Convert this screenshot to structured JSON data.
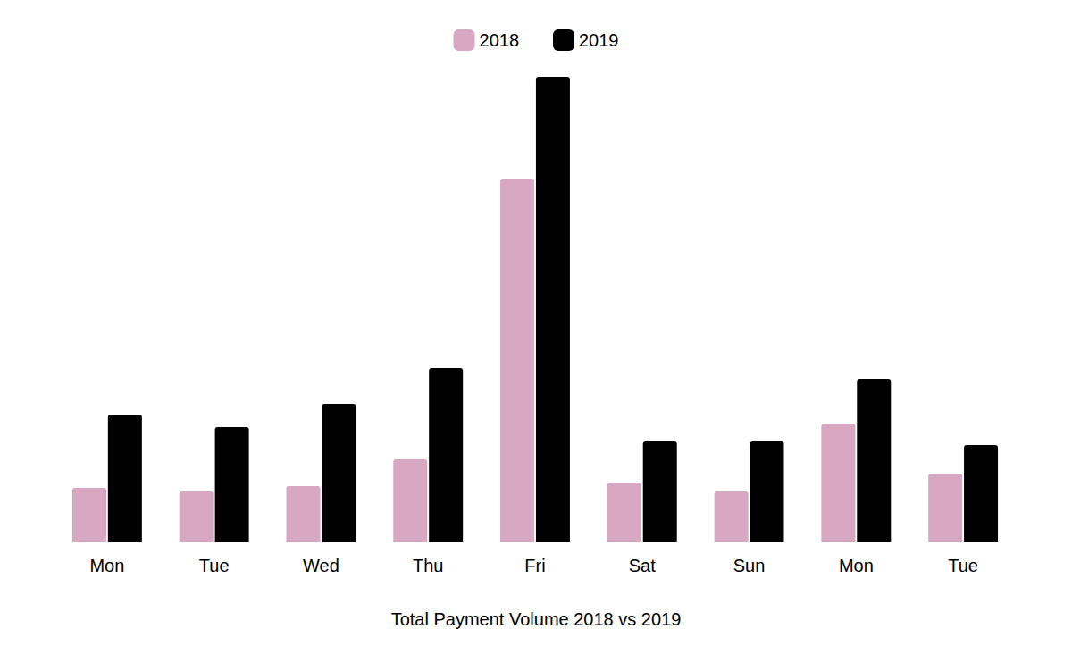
{
  "chart_data": {
    "type": "bar",
    "title": "Total Payment Volume 2018 vs 2019",
    "categories": [
      "Mon",
      "Tue",
      "Wed",
      "Thu",
      "Fri",
      "Sat",
      "Sun",
      "Mon",
      "Tue"
    ],
    "series": [
      {
        "name": "2018",
        "color": "#d8a7c1",
        "values": [
          61,
          57,
          63,
          93,
          407,
          67,
          57,
          133,
          77
        ]
      },
      {
        "name": "2019",
        "color": "#000000",
        "values": [
          143,
          129,
          155,
          195,
          521,
          113,
          113,
          183,
          109
        ]
      }
    ],
    "ylim": [
      0,
      521
    ],
    "grid": false,
    "tick_labels": "x",
    "legend": "top"
  }
}
